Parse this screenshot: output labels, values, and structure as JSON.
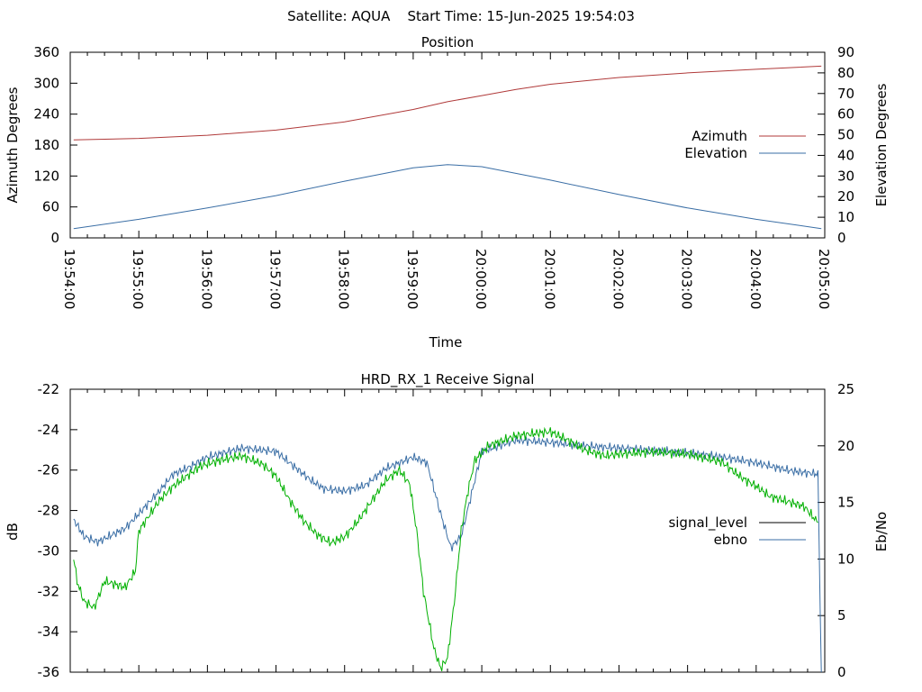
{
  "header": {
    "title": "Satellite: AQUA    Start Time: 15-Jun-2025 19:54:03"
  },
  "chart_data": [
    {
      "type": "line",
      "title": "Position",
      "xlabel": "Time",
      "ylabel": "Azimuth Degrees",
      "y2label": "Elevation Degrees",
      "x_ticks": [
        "19:54:00",
        "19:55:00",
        "19:56:00",
        "19:57:00",
        "19:58:00",
        "19:59:00",
        "20:00:00",
        "20:01:00",
        "20:02:00",
        "20:03:00",
        "20:04:00",
        "20:05:00"
      ],
      "xlim_minutes": [
        0,
        11
      ],
      "ylim": [
        0,
        360
      ],
      "y_ticks": [
        0,
        60,
        120,
        180,
        240,
        300,
        360
      ],
      "y2lim": [
        0,
        90
      ],
      "y2_ticks": [
        0,
        10,
        20,
        30,
        40,
        50,
        60,
        70,
        80,
        90
      ],
      "legend_position": "right",
      "series": [
        {
          "name": "Azimuth",
          "axis": "left",
          "color": "#b03a3a",
          "points": [
            [
              0.05,
              190
            ],
            [
              1,
              193
            ],
            [
              2,
              199
            ],
            [
              3,
              209
            ],
            [
              4,
              225
            ],
            [
              5,
              249
            ],
            [
              5.5,
              264
            ],
            [
              6,
              276
            ],
            [
              6.5,
              288
            ],
            [
              7,
              298
            ],
            [
              8,
              311
            ],
            [
              9,
              320
            ],
            [
              10,
              327
            ],
            [
              10.95,
              333
            ]
          ]
        },
        {
          "name": "Elevation",
          "axis": "right",
          "color": "#3a6ea5",
          "points": [
            [
              0.05,
              4.5
            ],
            [
              1,
              9
            ],
            [
              2,
              14.5
            ],
            [
              3,
              20.5
            ],
            [
              4,
              27.5
            ],
            [
              5,
              34
            ],
            [
              5.5,
              35.5
            ],
            [
              6,
              34.5
            ],
            [
              7,
              28
            ],
            [
              8,
              21
            ],
            [
              9,
              14.5
            ],
            [
              10,
              9
            ],
            [
              10.95,
              4.5
            ]
          ]
        }
      ]
    },
    {
      "type": "line",
      "title": "HRD_RX_1 Receive Signal",
      "ylabel": "dB",
      "y2label": "Eb/No",
      "ylim": [
        -36,
        -22
      ],
      "y_ticks": [
        -36,
        -34,
        -32,
        -30,
        -28,
        -26,
        -24,
        -22
      ],
      "y2lim": [
        0,
        25
      ],
      "y2_ticks": [
        0,
        5,
        10,
        15,
        20,
        25
      ],
      "legend_position": "right",
      "series": [
        {
          "name": "signal_level",
          "axis": "left",
          "color": "#000000",
          "legend_only": true,
          "points": []
        },
        {
          "name": "ebno",
          "axis": "right",
          "color": "#3a6ea5",
          "points": [
            [
              0.05,
              13.5
            ],
            [
              0.2,
              12
            ],
            [
              0.4,
              11.5
            ],
            [
              0.8,
              12.7
            ],
            [
              1,
              14
            ],
            [
              1.3,
              16
            ],
            [
              1.5,
              17.5
            ],
            [
              1.7,
              18
            ],
            [
              2,
              19
            ],
            [
              2.5,
              19.8
            ],
            [
              3,
              19.5
            ],
            [
              3.2,
              18.5
            ],
            [
              3.5,
              17
            ],
            [
              3.7,
              16.2
            ],
            [
              4,
              16
            ],
            [
              4.3,
              16.5
            ],
            [
              4.6,
              18
            ],
            [
              5,
              19
            ],
            [
              5.2,
              18.5
            ],
            [
              5.4,
              14
            ],
            [
              5.55,
              11
            ],
            [
              5.7,
              12
            ],
            [
              5.9,
              17
            ],
            [
              6,
              19.5
            ],
            [
              6.5,
              20.5
            ],
            [
              7,
              20.3
            ],
            [
              7.5,
              20
            ],
            [
              8,
              19.8
            ],
            [
              8.5,
              19.6
            ],
            [
              9,
              19.4
            ],
            [
              9.5,
              19
            ],
            [
              10,
              18.5
            ],
            [
              10.5,
              17.8
            ],
            [
              10.9,
              17.5
            ],
            [
              10.95,
              0
            ]
          ]
        },
        {
          "name": "",
          "axis": "left",
          "color": "#00b000",
          "points": [
            [
              0.05,
              -30.3
            ],
            [
              0.1,
              -31.5
            ],
            [
              0.2,
              -32.5
            ],
            [
              0.35,
              -32.8
            ],
            [
              0.5,
              -31.5
            ],
            [
              0.8,
              -31.8
            ],
            [
              0.95,
              -31
            ],
            [
              1,
              -29
            ],
            [
              1.1,
              -28.5
            ],
            [
              1.3,
              -27.5
            ],
            [
              1.5,
              -26.8
            ],
            [
              1.7,
              -26.3
            ],
            [
              1.9,
              -25.8
            ],
            [
              2.2,
              -25.5
            ],
            [
              2.5,
              -25.3
            ],
            [
              2.8,
              -25.7
            ],
            [
              3,
              -26.3
            ],
            [
              3.2,
              -27.5
            ],
            [
              3.4,
              -28.5
            ],
            [
              3.6,
              -29.2
            ],
            [
              3.8,
              -29.6
            ],
            [
              4,
              -29.3
            ],
            [
              4.2,
              -28.5
            ],
            [
              4.4,
              -27.5
            ],
            [
              4.6,
              -26.5
            ],
            [
              4.8,
              -26
            ],
            [
              4.95,
              -26.7
            ],
            [
              5.05,
              -29
            ],
            [
              5.15,
              -32
            ],
            [
              5.3,
              -34.8
            ],
            [
              5.4,
              -35.8
            ],
            [
              5.5,
              -35.3
            ],
            [
              5.6,
              -32.5
            ],
            [
              5.7,
              -29
            ],
            [
              5.8,
              -27
            ],
            [
              5.9,
              -25.5
            ],
            [
              6.1,
              -24.8
            ],
            [
              6.5,
              -24.3
            ],
            [
              7,
              -24.1
            ],
            [
              7.3,
              -24.6
            ],
            [
              7.5,
              -25
            ],
            [
              7.8,
              -25.3
            ],
            [
              8,
              -25.2
            ],
            [
              8.5,
              -25.1
            ],
            [
              9,
              -25.2
            ],
            [
              9.5,
              -25.6
            ],
            [
              9.8,
              -26.4
            ],
            [
              10,
              -26.8
            ],
            [
              10.2,
              -27.3
            ],
            [
              10.5,
              -27.6
            ],
            [
              10.7,
              -27.8
            ],
            [
              10.9,
              -28.6
            ]
          ]
        }
      ]
    }
  ]
}
